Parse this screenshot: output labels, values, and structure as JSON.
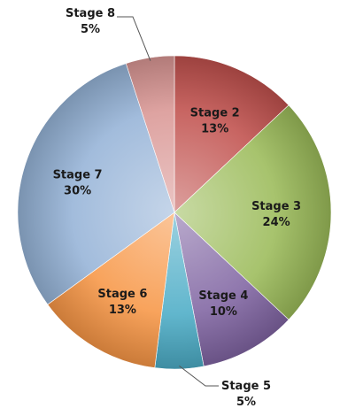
{
  "chart_data": {
    "type": "pie",
    "start_angle_deg": 0,
    "direction": "clockwise",
    "slices": [
      {
        "label": "Stage 2",
        "value_label": "13%",
        "value": 13,
        "color": "#c0504d",
        "label_placement": "inside"
      },
      {
        "label": "Stage 3",
        "value_label": "24%",
        "value": 24,
        "color": "#9bbb59",
        "label_placement": "inside"
      },
      {
        "label": "Stage 4",
        "value_label": "10%",
        "value": 10,
        "color": "#8064a2",
        "label_placement": "inside"
      },
      {
        "label": "Stage 5",
        "value_label": "5%",
        "value": 5,
        "color": "#4bacc6",
        "label_placement": "outside-bottom"
      },
      {
        "label": "Stage 6",
        "value_label": "13%",
        "value": 13,
        "color": "#f79646",
        "label_placement": "inside"
      },
      {
        "label": "Stage 7",
        "value_label": "30%",
        "value": 30,
        "color": "#95b3d7",
        "label_placement": "inside"
      },
      {
        "label": "Stage 8",
        "value_label": "5%",
        "value": 5,
        "color": "#d99694",
        "label_placement": "outside-top"
      }
    ]
  }
}
